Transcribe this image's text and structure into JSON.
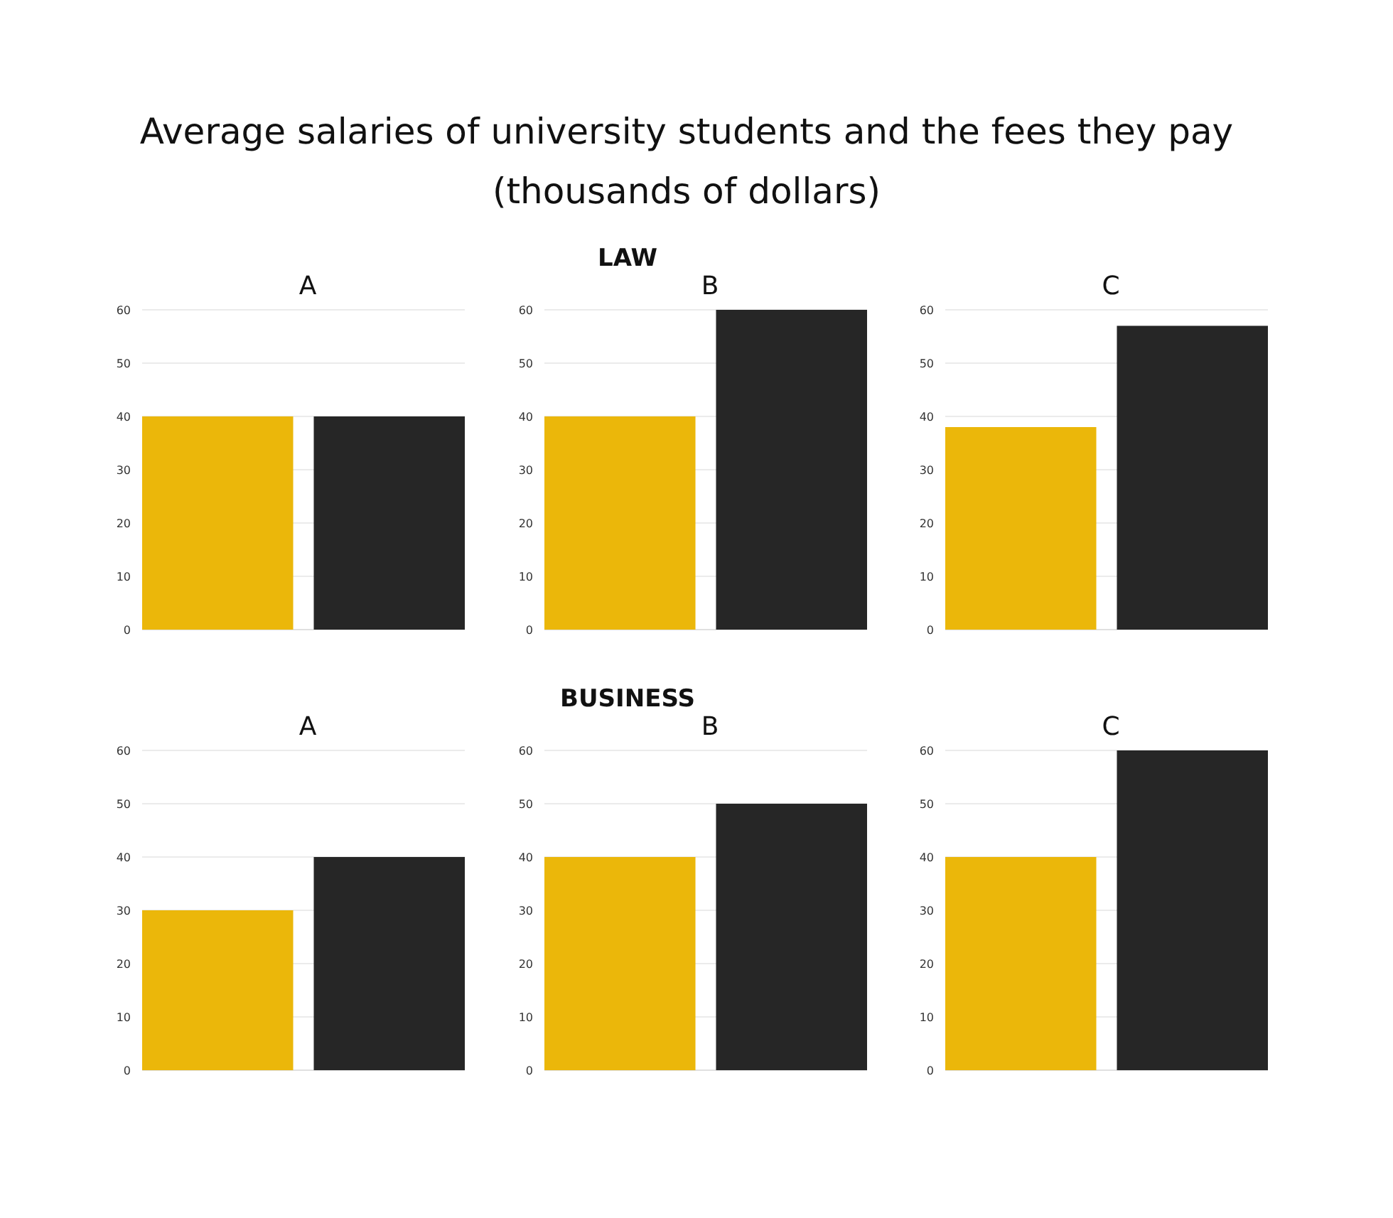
{
  "chart_data": [
    {
      "type": "bar",
      "title": "A",
      "categories": [
        null,
        null
      ],
      "values": [
        40,
        40
      ],
      "colors": [
        "#ebb70a",
        "#262626"
      ],
      "ylim": [
        0,
        60
      ],
      "yticks": [
        0,
        10,
        20,
        30,
        40,
        50,
        60
      ],
      "grid": "y",
      "annotations": [
        "Average salaries of university students and the fees they pay",
        "(thousands of dollars)"
      ]
    },
    {
      "type": "bar",
      "title": "B",
      "categories": [
        null,
        null
      ],
      "values": [
        40,
        60
      ],
      "colors": [
        "#ebb70a",
        "#262626"
      ],
      "ylim": [
        0,
        60
      ],
      "yticks": [
        0,
        10,
        20,
        30,
        40,
        50,
        60
      ],
      "grid": "y",
      "annotations": [
        "LAW"
      ]
    },
    {
      "type": "bar",
      "title": "C",
      "categories": [
        null,
        null
      ],
      "values": [
        38,
        57
      ],
      "colors": [
        "#ebb70a",
        "#262626"
      ],
      "ylim": [
        0,
        60
      ],
      "yticks": [
        0,
        10,
        20,
        30,
        40,
        50,
        60
      ],
      "grid": "y"
    },
    {
      "type": "bar",
      "title": "A",
      "categories": [
        null,
        null
      ],
      "values": [
        30,
        40
      ],
      "colors": [
        "#ebb70a",
        "#262626"
      ],
      "ylim": [
        0,
        60
      ],
      "yticks": [
        0,
        10,
        20,
        30,
        40,
        50,
        60
      ],
      "grid": "y"
    },
    {
      "type": "bar",
      "title": "B",
      "categories": [
        null,
        null
      ],
      "values": [
        40,
        50
      ],
      "colors": [
        "#ebb70a",
        "#262626"
      ],
      "ylim": [
        0,
        60
      ],
      "yticks": [
        0,
        10,
        20,
        30,
        40,
        50,
        60
      ],
      "grid": "y",
      "annotations": [
        "BUSINESS"
      ]
    },
    {
      "type": "bar",
      "title": "C",
      "categories": [
        null,
        null
      ],
      "values": [
        40,
        60
      ],
      "colors": [
        "#ebb70a",
        "#262626"
      ],
      "ylim": [
        0,
        60
      ],
      "yticks": [
        0,
        10,
        20,
        30,
        40,
        50,
        60
      ],
      "grid": "y"
    }
  ]
}
